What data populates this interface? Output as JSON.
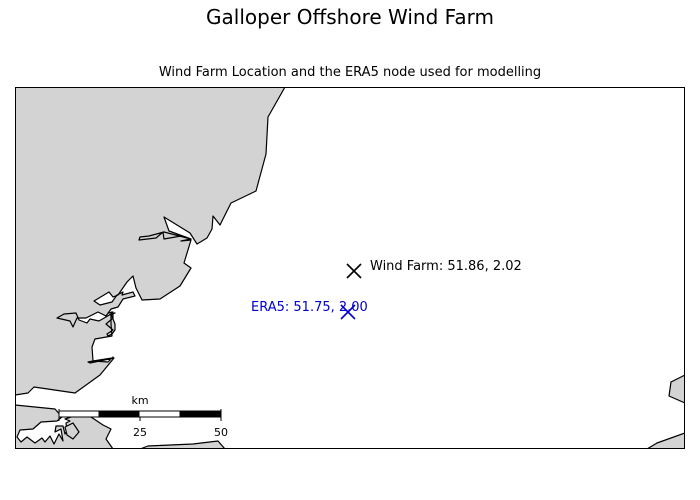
{
  "figure": {
    "title": "Galloper Offshore Wind Farm",
    "subtitle": "Wind Farm Location and the ERA5 node used for modelling"
  },
  "map": {
    "land_color": "#d3d3d3",
    "sea_color": "#ffffff",
    "coastline_color": "#000000"
  },
  "markers": {
    "wind_farm": {
      "label": "Wind Farm: 51.86, 2.02",
      "lat": 51.86,
      "lon": 2.02,
      "symbol": "x",
      "color": "#000000"
    },
    "era5": {
      "label": "ERA5: 51.75, 2.00",
      "lat": 51.75,
      "lon": 2.0,
      "symbol": "x",
      "color": "#0000cc"
    }
  },
  "scale_bar": {
    "unit": "km",
    "tick_labels": [
      "25",
      "50"
    ]
  }
}
